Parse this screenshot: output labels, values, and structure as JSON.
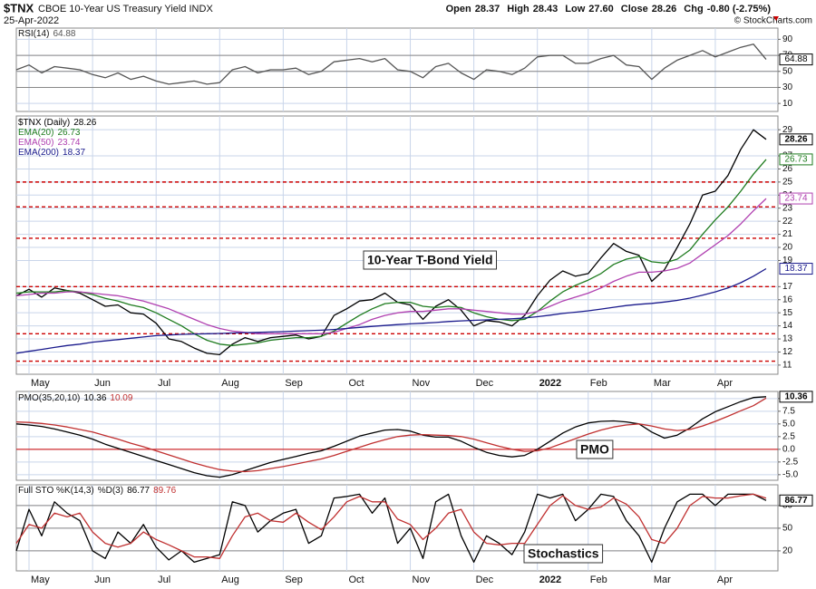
{
  "header": {
    "symbol": "$TNX",
    "name": "CBOE 10-Year US Treasury Yield INDX",
    "date": "25-Apr-2022",
    "quote": [
      {
        "label": "Open",
        "value": "28.37"
      },
      {
        "label": "High",
        "value": "28.43"
      },
      {
        "label": "Low",
        "value": "27.60"
      },
      {
        "label": "Close",
        "value": "28.26"
      },
      {
        "label": "Chg",
        "value": "-0.80 (-2.75%)"
      }
    ],
    "credit": "© StockCharts.com"
  },
  "chart_data": [
    {
      "type": "line",
      "grid": true,
      "legend": "upper left",
      "categories": [
        null,
        "May",
        null,
        null,
        null,
        null,
        "Jun",
        null,
        null,
        null,
        null,
        "Jul",
        null,
        null,
        null,
        null,
        "Aug",
        null,
        null,
        null,
        null,
        "Sep",
        null,
        null,
        null,
        null,
        "Oct",
        null,
        null,
        null,
        null,
        "Nov",
        null,
        null,
        null,
        null,
        "Dec",
        null,
        null,
        null,
        null,
        "2022",
        null,
        null,
        null,
        "Feb",
        null,
        null,
        null,
        null,
        "Mar",
        null,
        null,
        null,
        null,
        "Apr",
        null,
        null,
        null,
        null
      ],
      "ylim": [
        0,
        104
      ],
      "yticks": [
        90,
        70,
        50,
        30,
        10
      ],
      "levels": [
        70,
        50,
        30
      ],
      "level_color": "#888888",
      "level_dash": false,
      "series": [
        {
          "name": "RSI(14)",
          "color": "#555555",
          "end_label": true,
          "values": [
            52,
            58,
            48,
            56,
            54,
            52,
            46,
            42,
            48,
            40,
            44,
            38,
            34,
            36,
            38,
            34,
            36,
            52,
            56,
            48,
            52,
            52,
            54,
            46,
            50,
            62,
            64,
            66,
            62,
            66,
            52,
            50,
            42,
            56,
            60,
            48,
            40,
            52,
            50,
            46,
            54,
            68,
            70,
            70,
            60,
            60,
            66,
            70,
            58,
            56,
            40,
            54,
            64,
            70,
            76,
            68,
            74,
            80,
            84,
            64.88
          ]
        }
      ]
    },
    {
      "type": "line",
      "grid": true,
      "legend": "upper left",
      "legend_rows": true,
      "categories": [
        null,
        "May",
        null,
        null,
        null,
        null,
        "Jun",
        null,
        null,
        null,
        null,
        "Jul",
        null,
        null,
        null,
        null,
        "Aug",
        null,
        null,
        null,
        null,
        "Sep",
        null,
        null,
        null,
        null,
        "Oct",
        null,
        null,
        null,
        null,
        "Nov",
        null,
        null,
        null,
        null,
        "Dec",
        null,
        null,
        null,
        null,
        "2022",
        null,
        null,
        null,
        "Feb",
        null,
        null,
        null,
        null,
        "Mar",
        null,
        null,
        null,
        null,
        "Apr",
        null,
        null,
        null,
        null
      ],
      "ylim": [
        10.3,
        30.05
      ],
      "yticks": [
        29,
        27,
        26,
        25,
        24,
        23,
        22,
        21,
        20,
        19,
        17,
        16,
        15,
        14,
        13,
        12,
        11
      ],
      "levels": [
        25.0,
        23.1,
        20.7,
        17.0,
        13.4,
        11.3
      ],
      "level_color": "#cc0000",
      "level_dash": true,
      "annotations": [
        "10-Year T-Bond Yield"
      ],
      "series": [
        {
          "name": "$TNX (Daily)",
          "color": "#000000",
          "end_label": true,
          "values": [
            16.3,
            16.8,
            16.2,
            16.9,
            16.7,
            16.5,
            16.0,
            15.5,
            15.6,
            15.0,
            14.9,
            14.2,
            13.0,
            12.8,
            12.3,
            11.9,
            11.8,
            12.6,
            13.1,
            12.8,
            13.1,
            13.2,
            13.3,
            13.0,
            13.2,
            14.8,
            15.3,
            15.9,
            16.0,
            16.5,
            15.8,
            15.6,
            14.5,
            15.5,
            16.0,
            15.2,
            14.0,
            14.4,
            14.3,
            14.0,
            14.8,
            16.3,
            17.5,
            18.2,
            17.8,
            18.0,
            19.2,
            20.3,
            19.7,
            19.4,
            17.4,
            18.3,
            20.0,
            21.8,
            24.0,
            24.3,
            25.5,
            27.5,
            29.0,
            28.26
          ]
        },
        {
          "name": "EMA(20)",
          "color": "#1e7b1e",
          "end_label": true,
          "values": [
            16.5,
            16.6,
            16.6,
            16.6,
            16.7,
            16.6,
            16.4,
            16.1,
            15.9,
            15.6,
            15.4,
            15.0,
            14.5,
            14.0,
            13.4,
            12.9,
            12.6,
            12.5,
            12.6,
            12.7,
            12.9,
            13.0,
            13.1,
            13.1,
            13.2,
            13.6,
            14.2,
            14.8,
            15.3,
            15.7,
            15.8,
            15.8,
            15.5,
            15.4,
            15.5,
            15.4,
            15.0,
            14.7,
            14.5,
            14.4,
            14.5,
            15.1,
            15.9,
            16.6,
            17.1,
            17.5,
            18.0,
            18.7,
            19.1,
            19.3,
            18.9,
            18.8,
            19.1,
            19.8,
            21.0,
            22.1,
            23.1,
            24.3,
            25.6,
            26.73
          ]
        },
        {
          "name": "EMA(50)",
          "color": "#b040b0",
          "end_label": true,
          "values": [
            16.3,
            16.4,
            16.5,
            16.5,
            16.6,
            16.6,
            16.5,
            16.4,
            16.3,
            16.1,
            15.9,
            15.6,
            15.3,
            14.9,
            14.5,
            14.1,
            13.8,
            13.6,
            13.5,
            13.4,
            13.4,
            13.4,
            13.4,
            13.4,
            13.4,
            13.5,
            13.8,
            14.1,
            14.5,
            14.8,
            15.0,
            15.1,
            15.1,
            15.2,
            15.3,
            15.3,
            15.2,
            15.1,
            15.0,
            14.9,
            14.9,
            15.1,
            15.5,
            15.9,
            16.2,
            16.5,
            16.9,
            17.4,
            17.8,
            18.1,
            18.1,
            18.2,
            18.4,
            18.8,
            19.5,
            20.2,
            20.9,
            21.8,
            22.8,
            23.74
          ]
        },
        {
          "name": "EMA(200)",
          "color": "#1a1a8c",
          "end_label": true,
          "values": [
            11.9,
            12.05,
            12.2,
            12.35,
            12.5,
            12.6,
            12.75,
            12.85,
            12.95,
            13.05,
            13.15,
            13.25,
            13.3,
            13.35,
            13.38,
            13.4,
            13.42,
            13.45,
            13.48,
            13.5,
            13.53,
            13.56,
            13.6,
            13.63,
            13.67,
            13.72,
            13.8,
            13.88,
            13.96,
            14.03,
            14.1,
            14.15,
            14.2,
            14.26,
            14.33,
            14.38,
            14.42,
            14.46,
            14.5,
            14.54,
            14.6,
            14.7,
            14.82,
            14.95,
            15.05,
            15.15,
            15.28,
            15.42,
            15.55,
            15.65,
            15.72,
            15.82,
            15.95,
            16.12,
            16.35,
            16.6,
            16.9,
            17.3,
            17.8,
            18.37
          ]
        }
      ]
    },
    {
      "type": "line",
      "grid": true,
      "legend": "upper left",
      "categories": [
        null,
        "May",
        null,
        null,
        null,
        null,
        "Jun",
        null,
        null,
        null,
        null,
        "Jul",
        null,
        null,
        null,
        null,
        "Aug",
        null,
        null,
        null,
        null,
        "Sep",
        null,
        null,
        null,
        null,
        "Oct",
        null,
        null,
        null,
        null,
        "Nov",
        null,
        null,
        null,
        null,
        "Dec",
        null,
        null,
        null,
        null,
        "2022",
        null,
        null,
        null,
        "Feb",
        null,
        null,
        null,
        null,
        "Mar",
        null,
        null,
        null,
        null,
        "Apr",
        null,
        null,
        null,
        null
      ],
      "ylim": [
        -6.1,
        11.4
      ],
      "yticks": [
        {
          "value": 10,
          "label": "10.0"
        },
        7.5,
        {
          "value": 5,
          "label": "5.0"
        },
        2.5,
        {
          "value": 0,
          "label": "0.0"
        },
        -2.5,
        {
          "value": -5,
          "label": "-5.0"
        }
      ],
      "levels": [
        0
      ],
      "level_color": "#cc0000",
      "level_dash": false,
      "annotations": [
        "PMO"
      ],
      "series": [
        {
          "name": "PMO(35,20,10)",
          "color": "#000000",
          "end_label": true,
          "values": [
            5.0,
            4.8,
            4.5,
            4.0,
            3.4,
            2.8,
            2.0,
            1.0,
            0.2,
            -0.6,
            -1.4,
            -2.2,
            -3.0,
            -3.8,
            -4.6,
            -5.2,
            -5.5,
            -5.0,
            -4.2,
            -3.4,
            -2.6,
            -2.0,
            -1.4,
            -0.8,
            -0.3,
            0.6,
            1.6,
            2.6,
            3.2,
            3.8,
            3.9,
            3.6,
            2.8,
            2.4,
            2.4,
            1.6,
            0.4,
            -0.6,
            -1.2,
            -1.5,
            -1.2,
            0.0,
            1.6,
            3.2,
            4.4,
            5.2,
            5.5,
            5.6,
            5.4,
            5.0,
            3.4,
            2.2,
            2.8,
            4.2,
            6.0,
            7.4,
            8.4,
            9.4,
            10.2,
            10.36
          ]
        },
        {
          "color": "#c03030",
          "values": [
            5.4,
            5.3,
            5.1,
            4.8,
            4.4,
            3.9,
            3.4,
            2.7,
            2.0,
            1.2,
            0.5,
            -0.3,
            -1.1,
            -1.9,
            -2.7,
            -3.4,
            -4.0,
            -4.3,
            -4.4,
            -4.2,
            -3.8,
            -3.4,
            -2.9,
            -2.4,
            -1.9,
            -1.2,
            -0.4,
            0.4,
            1.2,
            1.9,
            2.5,
            2.8,
            2.9,
            2.8,
            2.7,
            2.5,
            2.0,
            1.3,
            0.6,
            0.0,
            -0.4,
            -0.3,
            0.3,
            1.2,
            2.1,
            3.0,
            3.8,
            4.4,
            4.8,
            5.0,
            4.6,
            4.0,
            3.7,
            3.9,
            4.6,
            5.5,
            6.5,
            7.6,
            8.6,
            10.09
          ]
        }
      ]
    },
    {
      "type": "line",
      "grid": true,
      "legend": "upper left",
      "categories": [
        null,
        "May",
        null,
        null,
        null,
        null,
        "Jun",
        null,
        null,
        null,
        null,
        "Jul",
        null,
        null,
        null,
        null,
        "Aug",
        null,
        null,
        null,
        null,
        "Sep",
        null,
        null,
        null,
        null,
        "Oct",
        null,
        null,
        null,
        null,
        "Nov",
        null,
        null,
        null,
        null,
        "Dec",
        null,
        null,
        null,
        null,
        "2022",
        null,
        null,
        null,
        "Feb",
        null,
        null,
        null,
        null,
        "Mar",
        null,
        null,
        null,
        null,
        "Apr",
        null,
        null,
        null,
        null
      ],
      "ylim": [
        -6.5,
        107.5
      ],
      "yticks": [
        80,
        50,
        20
      ],
      "levels": [
        80,
        50,
        20
      ],
      "level_color": "#888888",
      "level_dash": false,
      "annotations": [
        "Stochastics"
      ],
      "series": [
        {
          "name": "Full STO %K(14,3)",
          "color": "#000000",
          "end_label": true,
          "values": [
            20,
            75,
            40,
            85,
            70,
            60,
            20,
            10,
            45,
            30,
            55,
            25,
            8,
            20,
            5,
            10,
            15,
            85,
            80,
            45,
            60,
            70,
            75,
            30,
            40,
            90,
            92,
            95,
            70,
            90,
            30,
            50,
            10,
            85,
            95,
            40,
            5,
            40,
            30,
            15,
            45,
            95,
            90,
            95,
            60,
            75,
            95,
            92,
            60,
            40,
            5,
            50,
            85,
            95,
            95,
            80,
            95,
            95,
            95,
            86.77
          ]
        },
        {
          "name": "%D(3)",
          "color": "#c03030",
          "values": [
            30,
            55,
            50,
            70,
            65,
            70,
            45,
            30,
            25,
            30,
            45,
            35,
            28,
            20,
            12,
            12,
            10,
            40,
            65,
            70,
            60,
            58,
            70,
            58,
            48,
            65,
            85,
            92,
            85,
            85,
            62,
            55,
            35,
            50,
            70,
            75,
            45,
            30,
            28,
            30,
            30,
            55,
            80,
            93,
            80,
            75,
            78,
            90,
            82,
            65,
            35,
            30,
            50,
            80,
            92,
            90,
            90,
            93,
            95,
            89.76
          ]
        }
      ]
    }
  ]
}
